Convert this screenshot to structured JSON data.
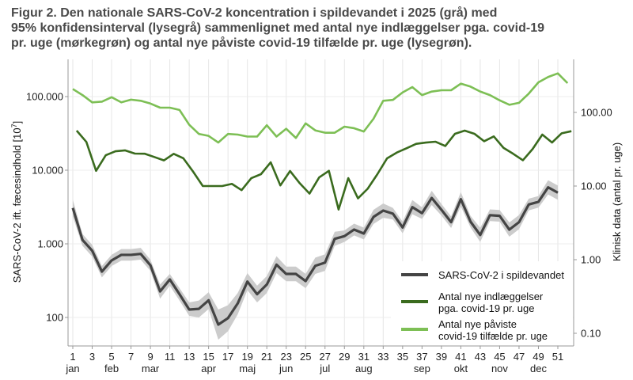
{
  "title_lines": [
    "Figur 2. Den nationale SARS-CoV-2 koncentration i spildevandet i 2025 (grå) med",
    "95% konfidensinterval (lysegrå) sammenlignet med antal nye indlæggelser pga. covid-19",
    "pr. uge (mørkegrøn) og antal nye påviste covid-19 tilfælde pr. uge (lysegrøn)."
  ],
  "chart_data": {
    "type": "line",
    "ylabel_left": "SARS-CoV-2 ift. fæcesindhold [10",
    "ylabel_left_exp": "7",
    "ylabel_left_close": "]",
    "ylabel_right": "Klinisk data (antal pr. uge)",
    "y_left_scale": "log",
    "y_right_scale": "log",
    "y_left_ticks": [
      {
        "v": 100,
        "label": "100"
      },
      {
        "v": 1000,
        "label": "1.000"
      },
      {
        "v": 10000,
        "label": "10.000"
      },
      {
        "v": 100000,
        "label": "100.000"
      }
    ],
    "y_right_ticks": [
      {
        "v": 0.1,
        "label": "0.10"
      },
      {
        "v": 1,
        "label": "1.00"
      },
      {
        "v": 10,
        "label": "10.00"
      },
      {
        "v": 100,
        "label": "100.00"
      }
    ],
    "x_ticks": [
      1,
      3,
      5,
      7,
      9,
      11,
      13,
      15,
      17,
      19,
      21,
      23,
      25,
      27,
      29,
      31,
      33,
      35,
      37,
      39,
      41,
      43,
      45,
      47,
      49,
      51
    ],
    "months": [
      {
        "w": 1,
        "label": "jan"
      },
      {
        "w": 5,
        "label": "feb"
      },
      {
        "w": 9,
        "label": "mar"
      },
      {
        "w": 15,
        "label": "apr"
      },
      {
        "w": 19,
        "label": "maj"
      },
      {
        "w": 23,
        "label": "jun"
      },
      {
        "w": 27,
        "label": "jul"
      },
      {
        "w": 31,
        "label": "aug"
      },
      {
        "w": 37,
        "label": "sep"
      },
      {
        "w": 41,
        "label": "okt"
      },
      {
        "w": 45,
        "label": "nov"
      },
      {
        "w": 49,
        "label": "dec"
      }
    ],
    "grid": true,
    "legend_position": "bottom-right",
    "series": [
      {
        "name": "SARS-CoV-2 i spildevandet",
        "axis": "left",
        "color": "#444444",
        "ci_color": "#cccccc",
        "weeks_start": 1,
        "values": [
          3070,
          1130,
          807,
          420,
          595,
          708,
          708,
          730,
          512,
          226,
          328,
          207,
          128,
          131,
          171,
          80,
          98,
          155,
          307,
          207,
          280,
          521,
          390,
          390,
          312,
          503,
          556,
          1170,
          1270,
          1563,
          1380,
          2320,
          2830,
          2570,
          1670,
          3150,
          2610,
          4200,
          2900,
          1970,
          4040,
          2000,
          1320,
          2450,
          2400,
          1560,
          1970,
          3420,
          3720,
          5850,
          4950
        ],
        "ci_lower": [
          2360,
          940,
          670,
          350,
          500,
          590,
          590,
          610,
          430,
          180,
          270,
          170,
          105,
          100,
          130,
          50,
          65,
          110,
          235,
          160,
          215,
          400,
          310,
          310,
          250,
          390,
          430,
          940,
          1060,
          1300,
          1150,
          1860,
          2260,
          2140,
          1390,
          2520,
          2180,
          3360,
          2420,
          1640,
          3230,
          1670,
          1060,
          2040,
          2000,
          1250,
          1580,
          2850,
          3100,
          4680,
          3960
        ],
        "ci_upper": [
          3990,
          1360,
          970,
          500,
          710,
          850,
          850,
          880,
          610,
          280,
          390,
          250,
          160,
          170,
          220,
          128,
          147,
          215,
          400,
          270,
          365,
          680,
          490,
          490,
          390,
          650,
          720,
          1460,
          1520,
          1880,
          1660,
          2900,
          3540,
          3080,
          2000,
          3940,
          3130,
          5250,
          3480,
          2360,
          5050,
          2400,
          1650,
          2940,
          2880,
          1950,
          2460,
          4100,
          4460,
          7310,
          6190
        ]
      },
      {
        "name_lines": [
          "Antal nye indlæggelser",
          "pga. covid-19 pr. uge"
        ],
        "axis": "right",
        "color": "#3a6b1e",
        "weeks_start": 1,
        "values": [
          56.6,
          39.7,
          16.1,
          26.2,
          29.7,
          30.5,
          27.6,
          27.5,
          24.8,
          22.3,
          27.4,
          23.8,
          15.7,
          10.0,
          10.0,
          10.0,
          10.7,
          8.8,
          12.8,
          14.5,
          21,
          10.2,
          16,
          10.9,
          7.9,
          13.1,
          16.1,
          4.8,
          12.8,
          6.8,
          9.2,
          14.5,
          23.8,
          28.5,
          32.6,
          37.4,
          39,
          40,
          35,
          51.3,
          56.6,
          51.3,
          40.6,
          47.2,
          33,
          27.4,
          22.4,
          31.8,
          50,
          39,
          52.1,
          55.6
        ]
      },
      {
        "name_lines": [
          "Antal nye påviste",
          "covid-19 tilfælde pr. uge"
        ],
        "axis": "right",
        "color": "#7dbf55",
        "weeks_start": 1,
        "values": [
          208,
          172,
          137,
          140,
          161,
          137,
          149,
          144,
          132,
          116,
          116,
          108,
          68,
          51,
          48,
          39,
          51,
          50,
          47,
          47,
          67,
          47,
          60,
          45,
          71,
          57,
          53,
          53,
          64,
          61,
          55,
          82,
          144,
          148,
          187,
          221,
          172,
          192,
          200,
          200,
          246,
          224,
          192,
          172,
          146,
          127,
          135,
          180,
          256,
          303,
          339,
          250
        ]
      }
    ]
  }
}
